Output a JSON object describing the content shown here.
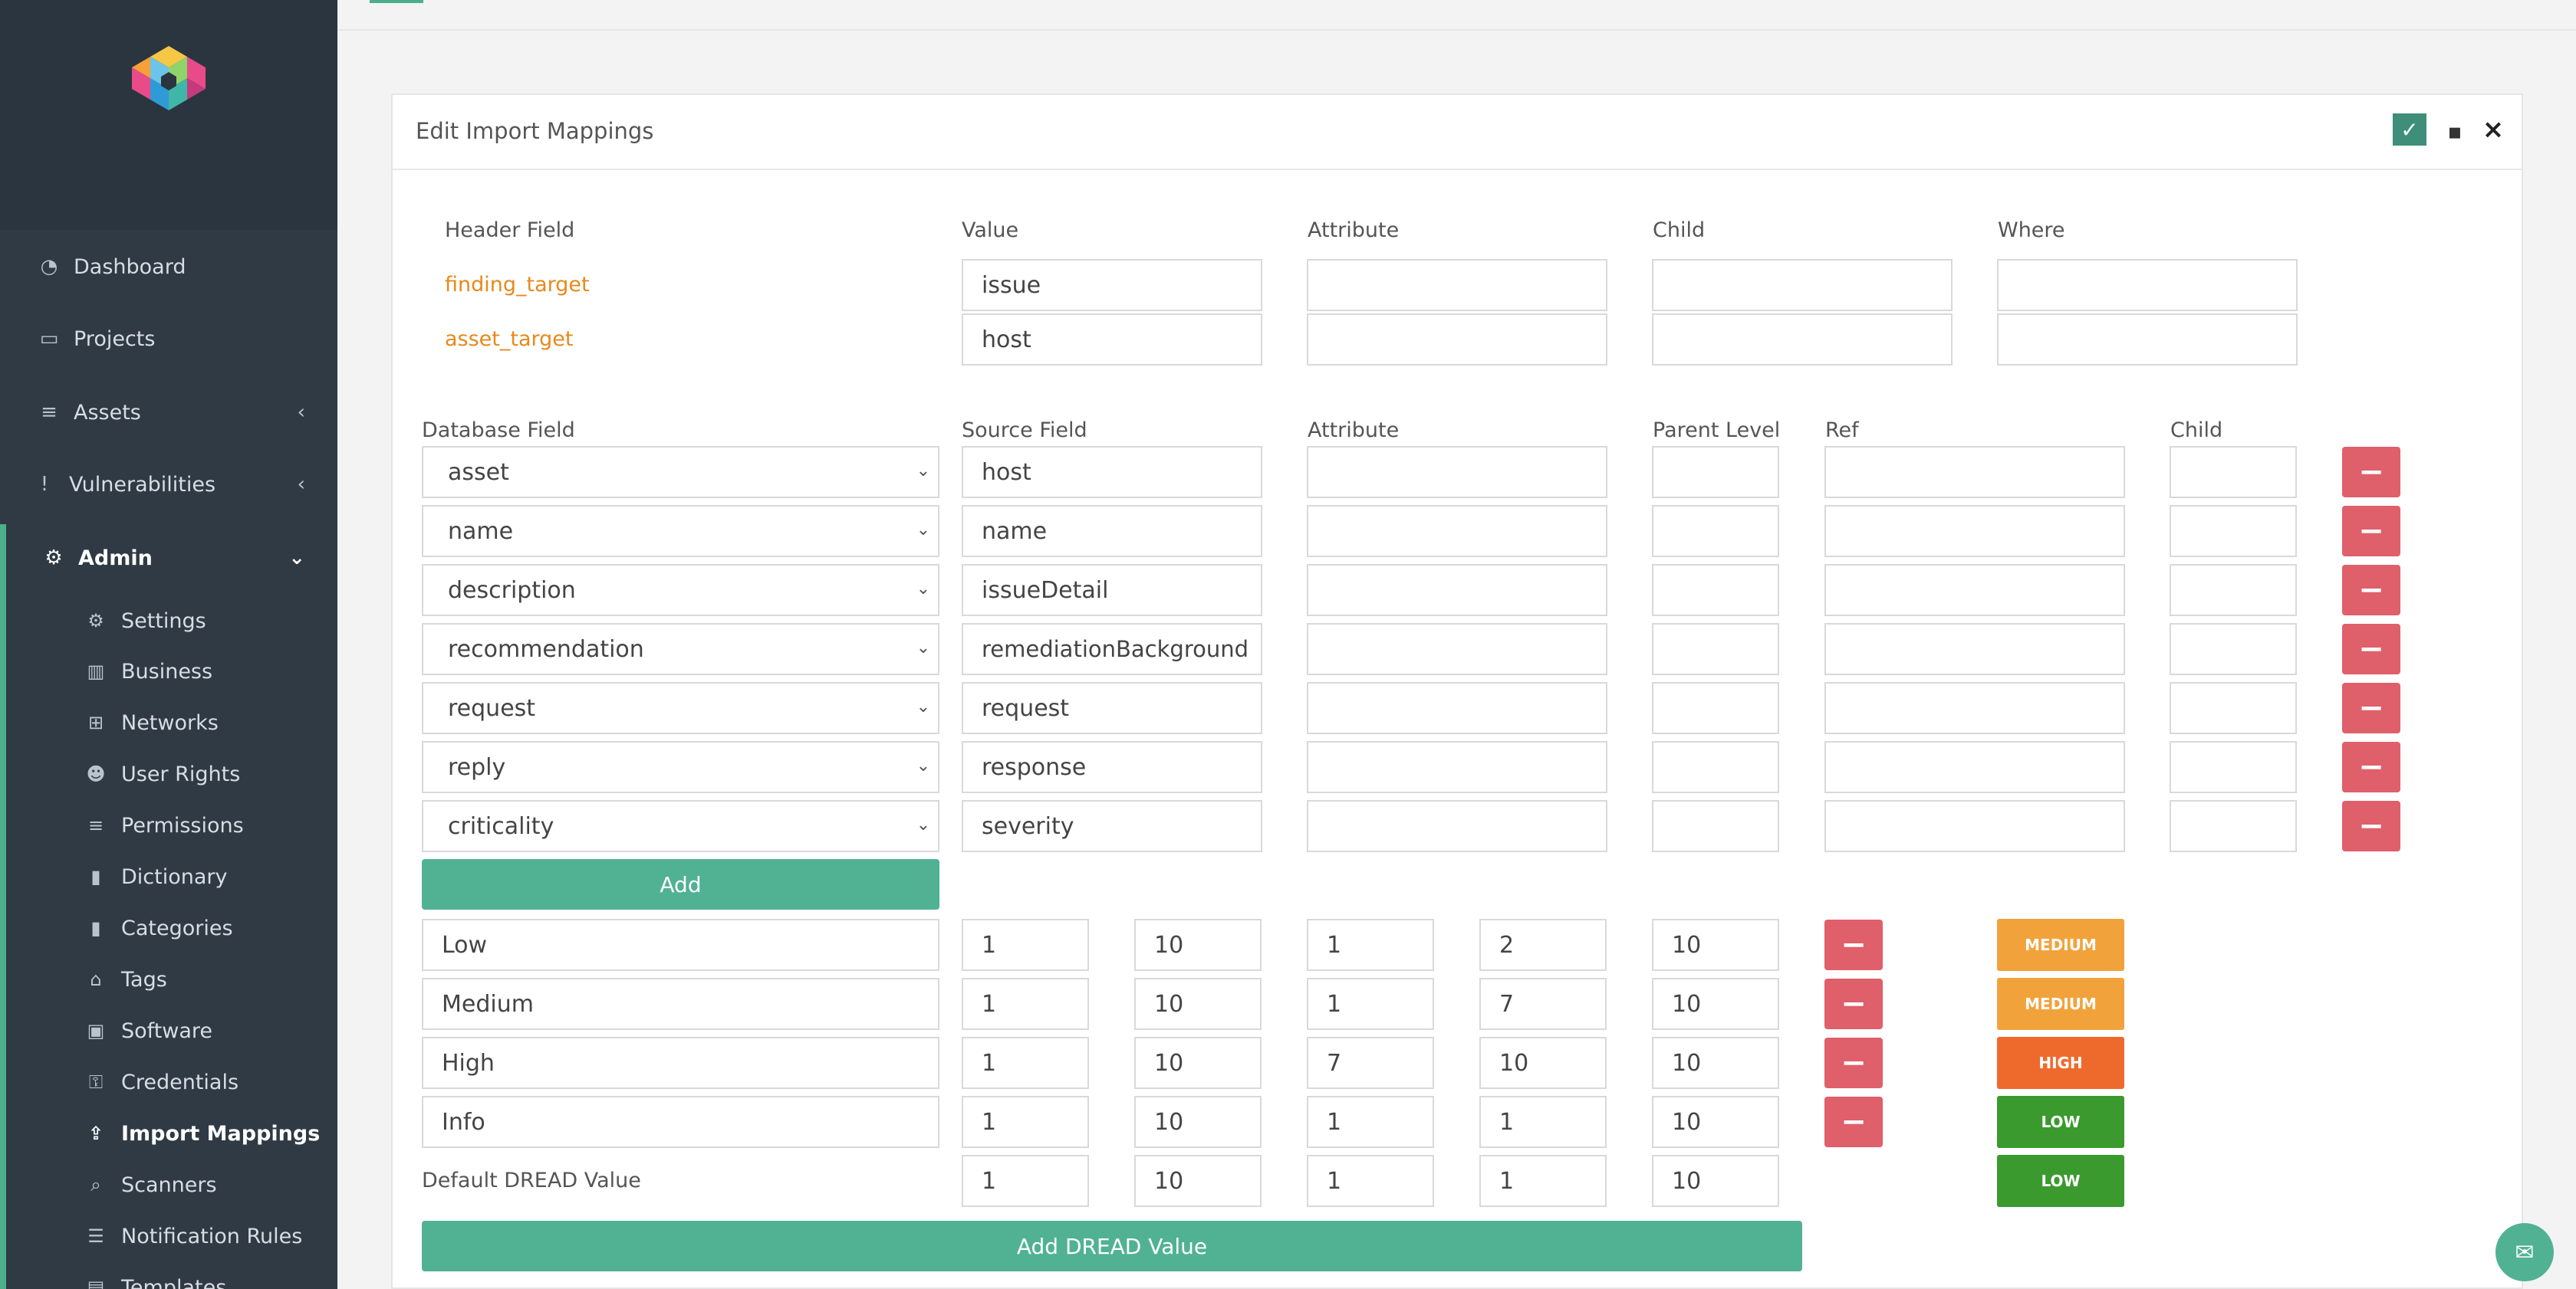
{
  "colors": {
    "sidebar": "#2f3a45",
    "accent": "#4caf8a",
    "remove": "#df5f6a",
    "medium": "#f2a23b",
    "high": "#ee6a2c",
    "low": "#3a9a2e",
    "link": "#e8891c"
  },
  "sidebar": {
    "nav": [
      {
        "label": "Dashboard",
        "icon": "dashboard-icon"
      },
      {
        "label": "Projects",
        "icon": "laptop-icon"
      },
      {
        "label": "Assets",
        "icon": "database-icon"
      },
      {
        "label": "Vulnerabilities",
        "icon": "exclamation-icon"
      },
      {
        "label": "Admin",
        "icon": "cogs-icon"
      }
    ],
    "admin_items": [
      {
        "label": "Settings",
        "icon": "cogs-icon"
      },
      {
        "label": "Business",
        "icon": "building-icon"
      },
      {
        "label": "Networks",
        "icon": "sitemap-icon"
      },
      {
        "label": "User Rights",
        "icon": "users-icon"
      },
      {
        "label": "Permissions",
        "icon": "database-icon"
      },
      {
        "label": "Dictionary",
        "icon": "book-icon"
      },
      {
        "label": "Categories",
        "icon": "book-icon"
      },
      {
        "label": "Tags",
        "icon": "tags-icon"
      },
      {
        "label": "Software",
        "icon": "box-icon"
      },
      {
        "label": "Credentials",
        "icon": "key-icon"
      },
      {
        "label": "Import Mappings",
        "icon": "upload-icon"
      },
      {
        "label": "Scanners",
        "icon": "search-icon"
      },
      {
        "label": "Notification Rules",
        "icon": "list-icon"
      },
      {
        "label": "Templates",
        "icon": "file-icon"
      }
    ]
  },
  "panel": {
    "title": "Edit Import Mappings"
  },
  "header_section": {
    "columns": [
      "Header Field",
      "Value",
      "Attribute",
      "Child",
      "Where"
    ],
    "rows": [
      {
        "field": "finding_target",
        "value": "issue",
        "attribute": "",
        "child": "",
        "where": ""
      },
      {
        "field": "asset_target",
        "value": "host",
        "attribute": "",
        "child": "",
        "where": ""
      }
    ]
  },
  "mapping_section": {
    "columns": [
      "Database Field",
      "Source Field",
      "Attribute",
      "Parent Level",
      "Ref",
      "Child"
    ],
    "rows": [
      {
        "db": "asset",
        "source": "host",
        "attribute": "",
        "parent": "",
        "ref": "",
        "child": ""
      },
      {
        "db": "name",
        "source": "name",
        "attribute": "",
        "parent": "",
        "ref": "",
        "child": ""
      },
      {
        "db": "description",
        "source": "issueDetail",
        "attribute": "",
        "parent": "",
        "ref": "",
        "child": ""
      },
      {
        "db": "recommendation",
        "source": "remediationBackground",
        "attribute": "",
        "parent": "",
        "ref": "",
        "child": ""
      },
      {
        "db": "request",
        "source": "request",
        "attribute": "",
        "parent": "",
        "ref": "",
        "child": ""
      },
      {
        "db": "reply",
        "source": "response",
        "attribute": "",
        "parent": "",
        "ref": "",
        "child": ""
      },
      {
        "db": "criticality",
        "source": "severity",
        "attribute": "",
        "parent": "",
        "ref": "",
        "child": ""
      }
    ],
    "add_label": "Add"
  },
  "dread_section": {
    "rows": [
      {
        "name": "Low",
        "v1": "1",
        "v2": "10",
        "v3": "1",
        "v4": "2",
        "v5": "10",
        "badge": "MEDIUM"
      },
      {
        "name": "Medium",
        "v1": "1",
        "v2": "10",
        "v3": "1",
        "v4": "7",
        "v5": "10",
        "badge": "MEDIUM"
      },
      {
        "name": "High",
        "v1": "1",
        "v2": "10",
        "v3": "7",
        "v4": "10",
        "v5": "10",
        "badge": "HIGH"
      },
      {
        "name": "Info",
        "v1": "1",
        "v2": "10",
        "v3": "1",
        "v4": "1",
        "v5": "10",
        "badge": "LOW"
      }
    ],
    "default_label": "Default DREAD Value",
    "default": {
      "v1": "1",
      "v2": "10",
      "v3": "1",
      "v4": "1",
      "v5": "10",
      "badge": "LOW"
    },
    "add_label": "Add DREAD Value"
  }
}
